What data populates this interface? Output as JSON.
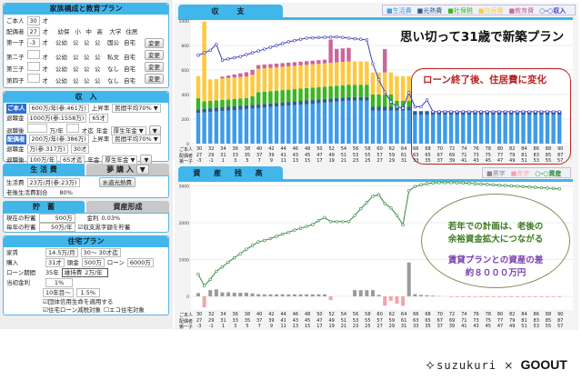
{
  "family": {
    "title": "家族構成と教育プラン",
    "self_label": "ご本人",
    "self_age": "30",
    "unit": "才",
    "spouse_label": "配偶者",
    "spouse_age": "27",
    "stage_headers": [
      "幼保",
      "小",
      "中",
      "高",
      "大学",
      "住居"
    ],
    "children": [
      {
        "label": "第一子",
        "age": "-3",
        "plan": [
          "公幼",
          "公",
          "公",
          "公",
          "国公",
          "自宅"
        ],
        "button": "変更"
      },
      {
        "label": "第二子",
        "age": "",
        "plan": [
          "公幼",
          "公",
          "公",
          "公",
          "私文",
          "自宅"
        ],
        "button": "変更"
      },
      {
        "label": "第三子",
        "age": "",
        "plan": [
          "公幼",
          "公",
          "公",
          "公",
          "なし",
          "自宅"
        ],
        "button": "変更"
      },
      {
        "label": "第四子",
        "age": "",
        "plan": [
          "公幼",
          "公",
          "公",
          "公",
          "なし",
          "自宅"
        ],
        "button": "変更"
      }
    ]
  },
  "income": {
    "title": "収　入",
    "self": {
      "label": "ご本人",
      "salary": "600万/年(参:461万)",
      "raise_label": "上昇率",
      "raise": "民間平均70% ▼",
      "retire_label": "退職金",
      "retire": "1000万(参:1558万)",
      "retire_age": "65才",
      "after_label": "退職後",
      "after_amount": "",
      "after_unit": "万/年",
      "after_until": "",
      "until_unit": "才迄",
      "pension_label": "年金",
      "pension": "厚生年金 ▼",
      "more": "▼"
    },
    "spouse": {
      "label": "配偶者",
      "salary": "200万/年(参:386万)",
      "raise_label": "上昇率",
      "raise": "民間平均70% ▼",
      "retire_label": "退職金",
      "retire": "万(参:317万)",
      "retire_age": "30才",
      "after_label": "退職後",
      "after_amount": "100万/年",
      "after_until": "65才迄",
      "pension_label": "年金",
      "pension": "厚生年金 ▼",
      "more": "▼"
    }
  },
  "living": {
    "tab1": "生 活 費",
    "tab2": "夢 購 入",
    "tab2_arrow": "▼",
    "cost_label": "生活費",
    "cost": "23万/月(参:23万)",
    "utility_button": "水道光熱費",
    "retire_ratio_label": "老後生活費割合",
    "retire_ratio": "80%"
  },
  "savings": {
    "tab1": "貯　蓄",
    "tab2": "資産形成",
    "current_label": "現在の貯蓄",
    "current": "500万",
    "rate_label": "金利",
    "rate": "0.03%",
    "yearly_label": "毎年の貯蓄",
    "yearly": "50万/年",
    "surplus_check": "☑収支黒字額を貯蓄"
  },
  "housing": {
    "title": "住宅プラン",
    "rent_label": "家賃",
    "rent": "14.5万/月",
    "rent_period": "30〜 30才迄",
    "buy_label": "購入",
    "buy_age": "31才",
    "down_label": "頭金",
    "down": "500万",
    "loan_label": "ローン",
    "loan": "6000万",
    "term_label": "ローン期間",
    "term": "35年",
    "maint_label": "維持費",
    "maint": "2万/年",
    "rate_label": "当初金利",
    "rate": "1%",
    "later_label": "10年目〜",
    "later_rate": "1.5%",
    "check1": "☑団体信用生命を適用する",
    "check2": "☑住宅ローン減税対象",
    "check3": "☐エコ住宅対象"
  },
  "balance": {
    "tab": "収　支",
    "legend": [
      "■生活費",
      "■光熱費",
      "■社保税",
      "■住居費",
      "■教育費",
      "○-○収入"
    ],
    "headline": "思い切って31歳で新築プラン",
    "note": "ローン終了後、住居費に変化",
    "yticks": [
      "0",
      "200",
      "400",
      "600",
      "800",
      "1000"
    ]
  },
  "assets": {
    "tab": "資 産 残 高",
    "legend": [
      "■黒字",
      "■赤字",
      "○-○資産"
    ],
    "yticks": [
      "0",
      "1000",
      "2000",
      "3000"
    ],
    "note1": "若年での計画は、老後の",
    "note2": "余裕資金拡大につながる",
    "note3": "賃貸プランとの資産の差",
    "note4": "約８０００万円"
  },
  "axis": {
    "row_labels": [
      "ご本人",
      "配偶者",
      "第一子"
    ],
    "self": [
      "30",
      "32",
      "34",
      "36",
      "38",
      "40",
      "42",
      "44",
      "46",
      "48",
      "50",
      "52",
      "54",
      "56",
      "58",
      "60",
      "62",
      "64",
      "66",
      "68",
      "70",
      "72",
      "74",
      "76",
      "78",
      "80",
      "82",
      "84",
      "86",
      "88",
      "90"
    ],
    "spouse": [
      "27",
      "29",
      "31",
      "33",
      "35",
      "37",
      "39",
      "41",
      "43",
      "45",
      "47",
      "49",
      "51",
      "53",
      "55",
      "57",
      "59",
      "61",
      "63",
      "65",
      "67",
      "69",
      "71",
      "73",
      "75",
      "77",
      "79",
      "81",
      "83",
      "85",
      "87"
    ],
    "child": [
      "-3",
      "-1",
      "1",
      "3",
      "5",
      "7",
      "9",
      "11",
      "13",
      "15",
      "17",
      "19",
      "21",
      "23",
      "25",
      "27",
      "29",
      "31",
      "33",
      "35",
      "37",
      "39",
      "41",
      "43",
      "45",
      "47",
      "49",
      "51",
      "53",
      "55",
      "57"
    ]
  },
  "colors": {
    "living": "#3d9be9",
    "utility": "#2d5f8f",
    "social": "#3cb521",
    "housing": "#ffc93c",
    "education": "#c8679a",
    "income": "#3a3ac8",
    "asset": "#2e8b3a",
    "surplus": "#9a9a9a",
    "deficit": "#f4a3ab"
  },
  "chart_data": [
    {
      "type": "bar",
      "title": "収支",
      "x_label": "ご本人 年齢",
      "x_start": 30,
      "x_end": 90,
      "ylim": [
        0,
        1000
      ],
      "series": [
        {
          "name": "生活費",
          "values": [
            250,
            254,
            258,
            262,
            266,
            270,
            274,
            278,
            282,
            286,
            290,
            294,
            298,
            302,
            306,
            310,
            314,
            318,
            322,
            326,
            330,
            334,
            338,
            342,
            346,
            350,
            350,
            350,
            350,
            270,
            270,
            270,
            270,
            270,
            270,
            270,
            235,
            235,
            235,
            235,
            235,
            235,
            235,
            235,
            235,
            235,
            235,
            235,
            235,
            235,
            235,
            235,
            235,
            235,
            235,
            235,
            235,
            235,
            235,
            235,
            235
          ]
        },
        {
          "name": "光熱費",
          "values": [
            30,
            30,
            30,
            30,
            30,
            30,
            30,
            30,
            30,
            30,
            30,
            30,
            30,
            30,
            30,
            30,
            30,
            30,
            30,
            30,
            30,
            30,
            30,
            30,
            30,
            30,
            30,
            30,
            30,
            30,
            30,
            30,
            30,
            30,
            30,
            30,
            30,
            30,
            30,
            30,
            30,
            30,
            30,
            30,
            30,
            30,
            30,
            30,
            30,
            30,
            30,
            30,
            30,
            30,
            30,
            30,
            30,
            30,
            30,
            30,
            30
          ]
        },
        {
          "name": "社保税",
          "values": [
            90,
            60,
            60,
            60,
            60,
            60,
            60,
            60,
            60,
            70,
            100,
            100,
            100,
            100,
            100,
            100,
            100,
            100,
            100,
            100,
            100,
            100,
            100,
            100,
            100,
            100,
            100,
            100,
            100,
            100,
            100,
            100,
            100,
            50,
            50,
            50,
            0,
            0,
            0,
            0,
            0,
            0,
            0,
            0,
            0,
            0,
            0,
            0,
            0,
            0,
            0,
            0,
            0,
            0,
            0,
            0,
            0,
            0,
            0,
            0,
            0
          ]
        },
        {
          "name": "住居費",
          "values": [
            180,
            650,
            175,
            175,
            175,
            175,
            175,
            175,
            175,
            175,
            190,
            190,
            190,
            190,
            190,
            190,
            190,
            190,
            190,
            190,
            190,
            190,
            190,
            190,
            190,
            190,
            190,
            190,
            190,
            180,
            180,
            180,
            180,
            200,
            200,
            200,
            0,
            0,
            0,
            0,
            0,
            0,
            0,
            0,
            0,
            0,
            0,
            0,
            0,
            0,
            0,
            0,
            0,
            0,
            0,
            0,
            0,
            0,
            0,
            0,
            0
          ]
        },
        {
          "name": "教育費",
          "values": [
            0,
            0,
            0,
            0,
            15,
            20,
            25,
            30,
            35,
            40,
            30,
            30,
            30,
            30,
            30,
            30,
            30,
            30,
            30,
            30,
            30,
            30,
            190,
            110,
            110,
            110,
            0,
            0,
            0,
            0,
            0,
            190,
            0,
            0,
            0,
            0,
            0,
            0,
            0,
            0,
            0,
            0,
            0,
            0,
            0,
            0,
            0,
            0,
            0,
            0,
            0,
            0,
            0,
            0,
            0,
            0,
            0,
            0,
            0,
            0,
            0
          ]
        },
        {
          "name": "収入",
          "kind": "line",
          "values": [
            720,
            740,
            760,
            810,
            680,
            690,
            700,
            710,
            725,
            740,
            755,
            770,
            785,
            800,
            815,
            830,
            840,
            850,
            860,
            862,
            864,
            866,
            868,
            870,
            865,
            860,
            855,
            850,
            845,
            650,
            520,
            420,
            340,
            300,
            290,
            415,
            300,
            300,
            355,
            260,
            260,
            260,
            260,
            260,
            260,
            260,
            260,
            260,
            260,
            260,
            260,
            260,
            260,
            260,
            260,
            260,
            260,
            260,
            260,
            260,
            260
          ]
        }
      ]
    },
    {
      "type": "bar",
      "title": "資産残高",
      "x_start": 30,
      "x_end": 90,
      "ylim": [
        -300,
        3000
      ],
      "series": [
        {
          "name": "黒字/赤字",
          "values": [
            90,
            -300,
            170,
            190,
            110,
            110,
            100,
            100,
            100,
            80,
            60,
            55,
            55,
            55,
            55,
            55,
            55,
            55,
            55,
            55,
            55,
            55,
            -100,
            0,
            0,
            0,
            170,
            170,
            170,
            170,
            40,
            -250,
            -120,
            -200,
            -260,
            920,
            60,
            40,
            30,
            20,
            10,
            0,
            -20,
            -20,
            -20,
            -20,
            -20,
            -20,
            -20,
            -20,
            -20,
            -20,
            -20,
            -20,
            -20,
            -20,
            -20,
            -20,
            -20,
            -20,
            -20
          ]
        },
        {
          "name": "資産",
          "kind": "line",
          "values": [
            600,
            290,
            460,
            680,
            800,
            930,
            1050,
            1160,
            1280,
            1380,
            1480,
            1520,
            1570,
            1630,
            1690,
            1740,
            1800,
            1850,
            1900,
            1950,
            2060,
            2140,
            2030,
            2030,
            2030,
            2030,
            2200,
            2380,
            2550,
            2720,
            2760,
            2520,
            2400,
            2200,
            1940,
            2870,
            2980,
            3030,
            3060,
            3080,
            3090,
            3090,
            3090,
            3085,
            3080,
            3070,
            3060,
            3050,
            3040,
            3030,
            3020,
            3010,
            3000,
            2990,
            2980,
            2970,
            2960,
            2950,
            2940,
            2930,
            2920
          ]
        }
      ]
    }
  ],
  "footer": {
    "logo1": "suzukuri",
    "times": "×",
    "logo2": "GOOUT"
  }
}
